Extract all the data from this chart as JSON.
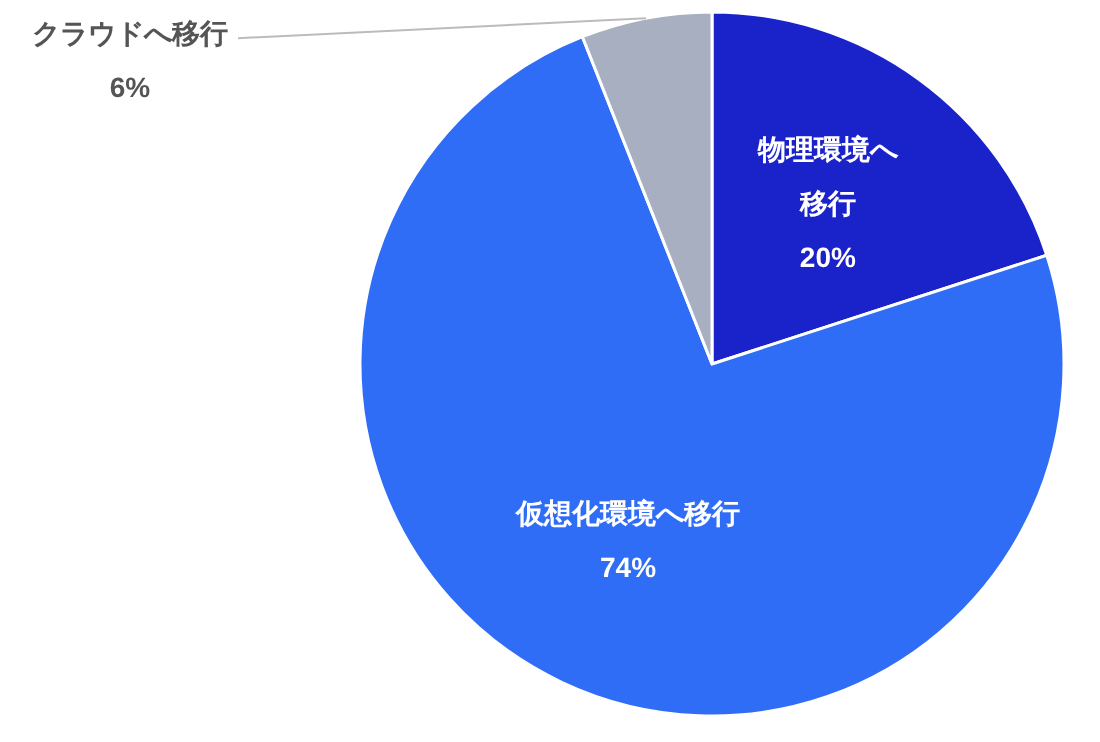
{
  "chart_data": {
    "type": "pie",
    "categories": [
      "物理環境へ移行",
      "仮想化環境へ移行",
      "クラウドへ移行"
    ],
    "values": [
      20,
      74,
      6
    ],
    "value_labels": [
      "20%",
      "74%",
      "6%"
    ],
    "colors": [
      "#1a22c9",
      "#2f6df6",
      "#a8afc0"
    ]
  }
}
